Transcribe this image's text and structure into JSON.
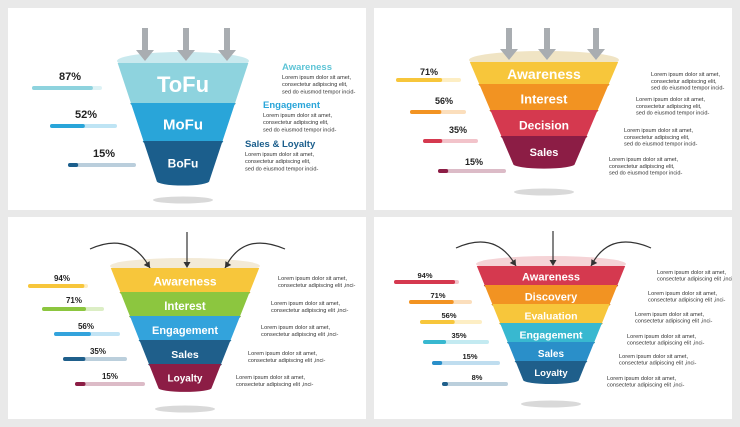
{
  "panels": [
    {
      "stages": [
        {
          "label": "ToFu",
          "color": "#8ed3de",
          "pct": "87%",
          "fill": 0.87
        },
        {
          "label": "MoFu",
          "color": "#29a5d9",
          "pct": "52%",
          "fill": 0.52
        },
        {
          "label": "BoFu",
          "color": "#1b5e8c",
          "pct": "15%",
          "fill": 0.15
        }
      ],
      "notes": [
        {
          "title": "Awareness",
          "title_color": "#5ec4d6",
          "lines": [
            "Lorem ipsum dolor sit amet,",
            "consectetur adipiscing elit,",
            "sed do eiusmod tempor incid-"
          ]
        },
        {
          "title": "Engagement",
          "title_color": "#29a5d9",
          "lines": [
            "Lorem ipsum dolor sit amet,",
            "consectetur adipiscing elit,",
            "sed do eiusmod tempor incid-"
          ]
        },
        {
          "title": "Sales & Loyalty",
          "title_color": "#1b5e8c",
          "lines": [
            "Lorem ipsum dolor sit amet,",
            "consectetur adipiscing elit,",
            "sed do eiusmod tempor incid-"
          ]
        }
      ]
    },
    {
      "stages": [
        {
          "label": "Awareness",
          "color": "#f7c63b",
          "pct": "71%",
          "fill": 0.71
        },
        {
          "label": "Interest",
          "color": "#f29322",
          "pct": "56%",
          "fill": 0.56
        },
        {
          "label": "Decision",
          "color": "#d5394f",
          "pct": "35%",
          "fill": 0.35
        },
        {
          "label": "Sales",
          "color": "#8c1d45",
          "pct": "15%",
          "fill": 0.15
        }
      ],
      "notes": [
        {
          "lines": [
            "Lorem ipsum dolor sit amet,",
            "consectetur adipiscing elit,",
            "sed do eiusmod tempor incid-"
          ]
        },
        {
          "lines": [
            "Lorem ipsum dolor sit amet,",
            "consectetur adipiscing elit,",
            "sed do eiusmod tempor incid-"
          ]
        },
        {
          "lines": [
            "Lorem ipsum dolor sit amet,",
            "consectetur adipiscing elit,",
            "sed do eiusmod tempor incid-"
          ]
        },
        {
          "lines": [
            "Lorem ipsum dolor sit amet,",
            "consectetur adipiscing elit,",
            "sed do eiusmod tempor incid-"
          ]
        }
      ]
    },
    {
      "stages": [
        {
          "label": "Awareness",
          "color": "#f7c63b",
          "pct": "94%",
          "fill": 0.94
        },
        {
          "label": "Interest",
          "color": "#8cc63f",
          "pct": "71%",
          "fill": 0.71
        },
        {
          "label": "Engagement",
          "color": "#33a3dc",
          "pct": "56%",
          "fill": 0.56
        },
        {
          "label": "Sales",
          "color": "#1f5f8b",
          "pct": "35%",
          "fill": 0.35
        },
        {
          "label": "Loyalty",
          "color": "#8c1d45",
          "pct": "15%",
          "fill": 0.15
        }
      ],
      "notes": [
        {
          "lines": [
            "Lorem ipsum dolor sit amet,",
            "consectetur adipiscing elit ,inci-"
          ]
        },
        {
          "lines": [
            "Lorem ipsum dolor sit amet,",
            "consectetur adipiscing elit ,inci-"
          ]
        },
        {
          "lines": [
            "Lorem ipsum dolor sit amet,",
            "consectetur adipiscing elit ,inci-"
          ]
        },
        {
          "lines": [
            "Lorem ipsum dolor sit amet,",
            "consectetur adipiscing elit ,inci-"
          ]
        },
        {
          "lines": [
            "Lorem ipsum dolor sit amet,",
            "consectetur adipiscing elit ,inci-"
          ]
        }
      ]
    },
    {
      "stages": [
        {
          "label": "Awareness",
          "color": "#d5394f",
          "pct": "94%",
          "fill": 0.94
        },
        {
          "label": "Discovery",
          "color": "#f29322",
          "pct": "71%",
          "fill": 0.71
        },
        {
          "label": "Evaluation",
          "color": "#f7c63b",
          "pct": "56%",
          "fill": 0.56
        },
        {
          "label": "Engagement",
          "color": "#38b8d0",
          "pct": "35%",
          "fill": 0.35
        },
        {
          "label": "Sales",
          "color": "#2a8fc9",
          "pct": "15%",
          "fill": 0.15
        },
        {
          "label": "Loyalty",
          "color": "#1f5f8b",
          "pct": "8%",
          "fill": 0.08
        }
      ],
      "notes": [
        {
          "lines": [
            "Lorem ipsum dolor sit amet,",
            "consectetur adipiscing elit ,inci-"
          ]
        },
        {
          "lines": [
            "Lorem ipsum dolor sit amet,",
            "consectetur adipiscing elit ,inci-"
          ]
        },
        {
          "lines": [
            "Lorem ipsum dolor sit amet,",
            "consectetur adipiscing elit ,inci-"
          ]
        },
        {
          "lines": [
            "Lorem ipsum dolor sit amet,",
            "consectetur adipiscing elit ,inci-"
          ]
        },
        {
          "lines": [
            "Lorem ipsum dolor sit amet,",
            "consectetur adipiscing elit ,inci-"
          ]
        },
        {
          "lines": [
            "Lorem ipsum dolor sit amet,",
            "consectetur adipiscing elit ,inci-"
          ]
        }
      ]
    }
  ]
}
